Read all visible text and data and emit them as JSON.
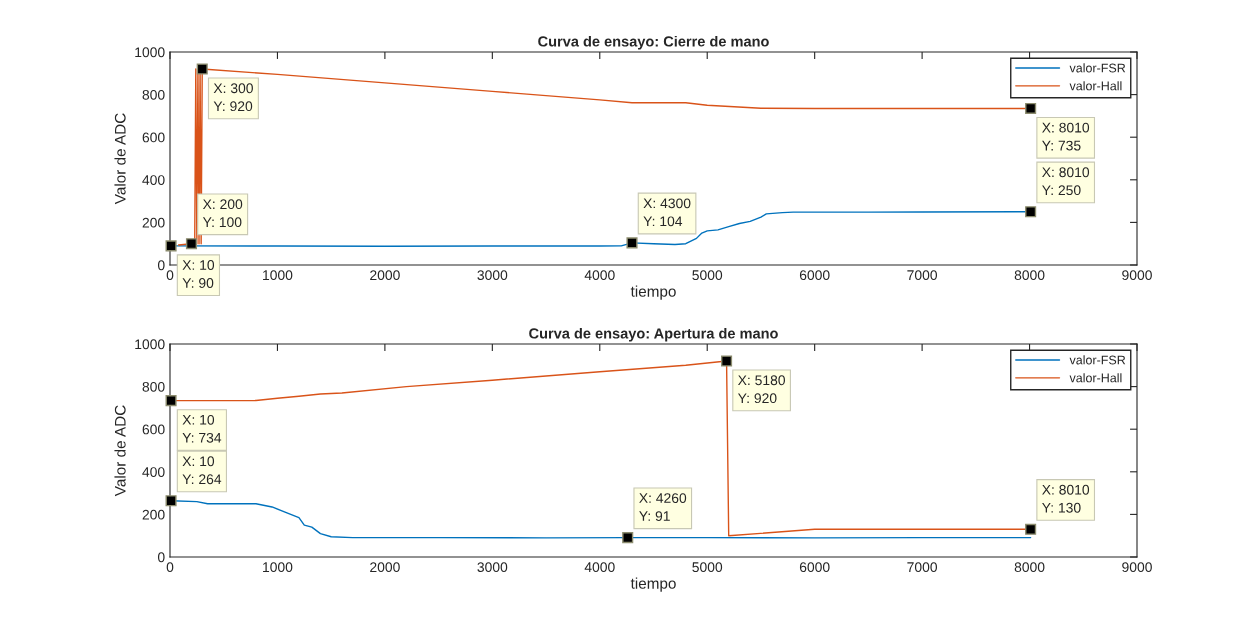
{
  "chart_data": [
    {
      "type": "line",
      "title": "Curva de ensayo: Cierre de mano",
      "xlabel": "tiempo",
      "ylabel": "Valor de ADC",
      "xlim": [
        0,
        9000
      ],
      "xticks": [
        0,
        1000,
        2000,
        3000,
        4000,
        5000,
        6000,
        7000,
        8000,
        9000
      ],
      "ylim": [
        0,
        1000
      ],
      "yticks": [
        0,
        200,
        400,
        600,
        800,
        1000
      ],
      "grid": false,
      "legend": "top right",
      "series": [
        {
          "name": "valor-FSR",
          "color": "#0072bd",
          "x": [
            10,
            1000,
            2000,
            3000,
            4000,
            4200,
            4300,
            4500,
            4700,
            4800,
            4900,
            4950,
            5000,
            5100,
            5200,
            5300,
            5400,
            5500,
            5550,
            5700,
            5800,
            6500,
            7000,
            8010
          ],
          "values": [
            90,
            89,
            88,
            89,
            89,
            90,
            104,
            100,
            96,
            100,
            125,
            150,
            160,
            165,
            180,
            195,
            205,
            225,
            240,
            246,
            248,
            248,
            249,
            250
          ]
        },
        {
          "name": "valor-Hall",
          "color": "#d95319",
          "x": [
            80,
            200,
            230,
            240,
            250,
            260,
            270,
            280,
            290,
            300,
            1000,
            2000,
            3000,
            4000,
            4300,
            4800,
            5000,
            5500,
            6000,
            7000,
            8010
          ],
          "values": [
            94,
            100,
            100,
            920,
            100,
            920,
            100,
            920,
            100,
            920,
            895,
            855,
            815,
            775,
            762,
            762,
            750,
            736,
            735,
            735,
            735
          ]
        }
      ],
      "annotations": [
        {
          "text": "X: 10\nY: 90",
          "x": 10,
          "y": 90
        },
        {
          "text": "X: 200\nY: 100",
          "x": 200,
          "y": 100
        },
        {
          "text": "X: 300\nY: 920",
          "x": 300,
          "y": 920
        },
        {
          "text": "X: 4300\nY: 104",
          "x": 4300,
          "y": 104
        },
        {
          "text": "X: 8010\nY: 735",
          "x": 8010,
          "y": 735
        },
        {
          "text": "X: 8010\nY: 250",
          "x": 8010,
          "y": 250
        }
      ]
    },
    {
      "type": "line",
      "title": "Curva de ensayo: Apertura de mano",
      "xlabel": "tiempo",
      "ylabel": "Valor de ADC",
      "xlim": [
        0,
        9000
      ],
      "xticks": [
        0,
        1000,
        2000,
        3000,
        4000,
        5000,
        6000,
        7000,
        8000,
        9000
      ],
      "ylim": [
        0,
        1000
      ],
      "yticks": [
        0,
        200,
        400,
        600,
        800,
        1000
      ],
      "grid": false,
      "legend": "top right",
      "series": [
        {
          "name": "valor-FSR",
          "color": "#0072bd",
          "x": [
            10,
            250,
            350,
            800,
            950,
            1100,
            1200,
            1250,
            1320,
            1400,
            1500,
            1700,
            2500,
            3500,
            4260,
            5000,
            6000,
            7000,
            8010
          ],
          "values": [
            264,
            260,
            250,
            250,
            235,
            205,
            185,
            150,
            140,
            110,
            95,
            91,
            91,
            90,
            91,
            91,
            90,
            91,
            91
          ]
        },
        {
          "name": "valor-Hall",
          "color": "#d95319",
          "x": [
            10,
            800,
            1000,
            1200,
            1400,
            1600,
            2200,
            3000,
            4000,
            4800,
            5180,
            5200,
            6000,
            7000,
            8010
          ],
          "values": [
            734,
            735,
            745,
            755,
            765,
            770,
            800,
            830,
            870,
            900,
            920,
            100,
            130,
            130,
            130
          ]
        }
      ],
      "annotations": [
        {
          "text": "X: 10\nY: 734",
          "x": 10,
          "y": 734
        },
        {
          "text": "X: 10\nY: 264",
          "x": 10,
          "y": 264
        },
        {
          "text": "X: 4260\nY: 91",
          "x": 4260,
          "y": 91
        },
        {
          "text": "X: 5180\nY: 920",
          "x": 5180,
          "y": 920
        },
        {
          "text": "X: 8010\nY: 130",
          "x": 8010,
          "y": 130
        }
      ]
    }
  ]
}
